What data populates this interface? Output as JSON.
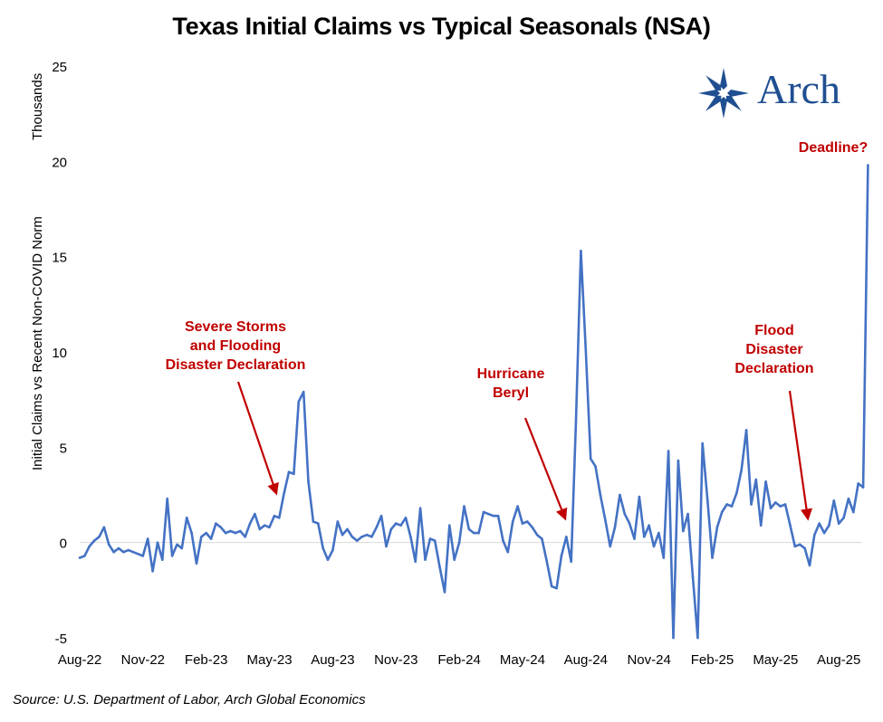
{
  "chart_data": {
    "type": "line",
    "title": "Texas Initial Claims vs Typical Seasonals (NSA)",
    "ylabel": "Initial Claims vs Recent Non-COVID Norm",
    "yunit_label": "Thousands",
    "xlabel": "",
    "ylim": [
      -5,
      25
    ],
    "yticks": [
      -5,
      0,
      5,
      10,
      15,
      20,
      25
    ],
    "xtick_labels": [
      "Aug-22",
      "Nov-22",
      "Feb-23",
      "May-23",
      "Aug-23",
      "Nov-23",
      "Feb-24",
      "May-24",
      "Aug-24",
      "Nov-24",
      "Feb-25",
      "May-25",
      "Aug-25"
    ],
    "x_start_week": 0,
    "weeks_per_tick": 13,
    "grid": false,
    "series": [
      {
        "name": "Texas Initial Claims vs Recent Non-COVID Norm",
        "color": "#4472c4",
        "values": [
          -0.8,
          -0.7,
          -0.2,
          0.1,
          0.3,
          0.8,
          -0.1,
          -0.5,
          -0.3,
          -0.5,
          -0.4,
          -0.5,
          -0.6,
          -0.7,
          0.2,
          -1.5,
          0.0,
          -0.9,
          2.3,
          -0.7,
          -0.1,
          -0.3,
          1.3,
          0.5,
          -1.1,
          0.3,
          0.5,
          0.2,
          1.0,
          0.8,
          0.5,
          0.6,
          0.5,
          0.6,
          0.3,
          1.0,
          1.5,
          0.7,
          0.9,
          0.8,
          1.4,
          1.3,
          2.6,
          3.7,
          3.6,
          7.4,
          7.9,
          3.2,
          1.1,
          1.0,
          -0.3,
          -0.9,
          -0.4,
          1.1,
          0.4,
          0.7,
          0.3,
          0.1,
          0.3,
          0.4,
          0.3,
          0.8,
          1.4,
          -0.2,
          0.7,
          1.0,
          0.9,
          1.3,
          0.3,
          -1.0,
          1.8,
          -0.9,
          0.2,
          0.1,
          -1.3,
          -2.6,
          0.9,
          -0.9,
          0.0,
          1.9,
          0.7,
          0.5,
          0.5,
          1.6,
          1.5,
          1.4,
          1.4,
          0.1,
          -0.5,
          1.1,
          1.9,
          1.0,
          1.1,
          0.8,
          0.4,
          0.2,
          -1.0,
          -2.3,
          -2.4,
          -0.7,
          0.3,
          -1.0,
          6.4,
          15.3,
          10.1,
          4.4,
          4.0,
          2.5,
          1.2,
          -0.2,
          0.8,
          2.5,
          1.5,
          1.0,
          0.2,
          2.4,
          0.3,
          0.9,
          -0.2,
          0.5,
          -0.8,
          4.8,
          -5.0,
          4.3,
          0.6,
          1.5,
          -1.8,
          -5.0,
          5.2,
          2.3,
          -0.8,
          0.8,
          1.6,
          2.0,
          1.9,
          2.6,
          3.8,
          5.9,
          2.0,
          3.3,
          0.9,
          3.2,
          1.8,
          2.1,
          1.9,
          2.0,
          0.9,
          -0.2,
          -0.1,
          -0.3,
          -1.2,
          0.4,
          1.0,
          0.5,
          0.9,
          2.2,
          1.0,
          1.3,
          2.3,
          1.6,
          3.1,
          2.9,
          19.8
        ]
      }
    ],
    "annotations": [
      {
        "lines": [
          "Severe Storms",
          "and Flooding",
          "Disaster Declaration"
        ]
      },
      {
        "lines": [
          "Hurricane",
          "Beryl"
        ]
      },
      {
        "lines": [
          "Flood",
          "Disaster",
          "Declaration"
        ]
      },
      {
        "lines": [
          "Deadline?"
        ]
      }
    ]
  },
  "source": "Source: U.S. Department of Labor, Arch Global Economics",
  "logo": {
    "text": "Arch",
    "color": "#1f4f91"
  },
  "annotation_color": "#c00000"
}
